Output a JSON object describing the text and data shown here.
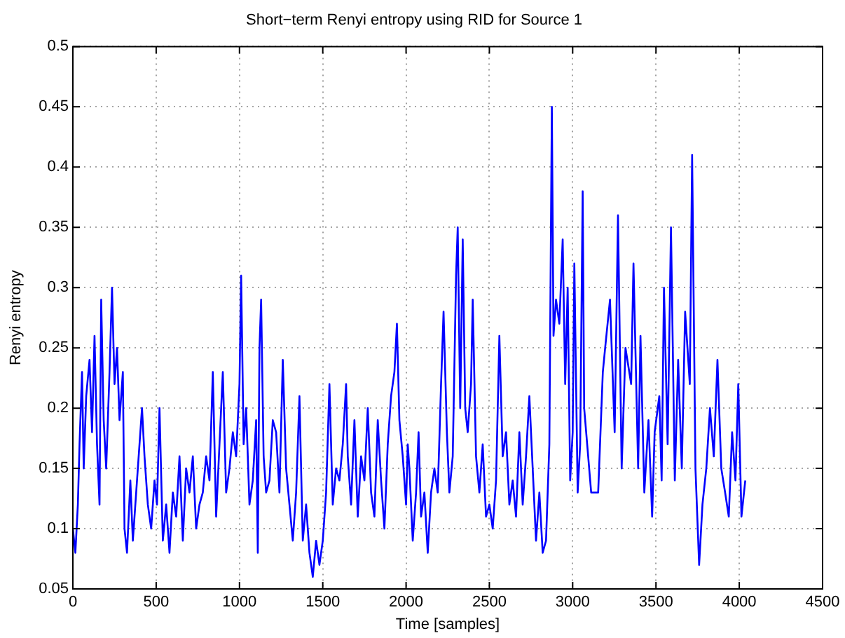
{
  "chart_data": {
    "type": "line",
    "title": "Short−term Renyi entropy using RID for Source 1",
    "xlabel": "Time [samples]",
    "ylabel": "Renyi entropy",
    "xlim": [
      0,
      4500
    ],
    "xticks": [
      0,
      500,
      1000,
      1500,
      2000,
      2500,
      3000,
      3500,
      4000,
      4500
    ],
    "ylim": [
      0.05,
      0.5
    ],
    "yticks": [
      0.05,
      0.1,
      0.15,
      0.2,
      0.25,
      0.3,
      0.35,
      0.4,
      0.45,
      0.5
    ],
    "grid": true,
    "marker": "none",
    "line_style": "solid",
    "series": [
      {
        "color": "#0000ff",
        "x": [
          0,
          15,
          30,
          40,
          55,
          65,
          80,
          100,
          115,
          130,
          145,
          160,
          170,
          185,
          200,
          220,
          235,
          250,
          265,
          280,
          300,
          310,
          325,
          345,
          360,
          380,
          400,
          415,
          430,
          450,
          470,
          490,
          505,
          520,
          540,
          560,
          580,
          600,
          620,
          640,
          660,
          680,
          700,
          720,
          740,
          760,
          780,
          800,
          820,
          840,
          860,
          880,
          900,
          920,
          940,
          960,
          980,
          1000,
          1010,
          1025,
          1040,
          1060,
          1080,
          1100,
          1110,
          1120,
          1130,
          1145,
          1160,
          1180,
          1200,
          1220,
          1240,
          1260,
          1280,
          1300,
          1320,
          1340,
          1360,
          1380,
          1400,
          1420,
          1440,
          1460,
          1480,
          1500,
          1520,
          1540,
          1560,
          1580,
          1600,
          1620,
          1640,
          1650,
          1670,
          1690,
          1710,
          1730,
          1750,
          1770,
          1790,
          1810,
          1830,
          1850,
          1870,
          1890,
          1910,
          1930,
          1945,
          1960,
          1980,
          2000,
          2010,
          2020,
          2040,
          2060,
          2075,
          2090,
          2110,
          2130,
          2150,
          2170,
          2190,
          2210,
          2225,
          2245,
          2260,
          2280,
          2300,
          2310,
          2325,
          2340,
          2355,
          2370,
          2390,
          2400,
          2420,
          2440,
          2460,
          2480,
          2500,
          2520,
          2540,
          2560,
          2580,
          2600,
          2620,
          2640,
          2660,
          2680,
          2700,
          2720,
          2740,
          2760,
          2780,
          2800,
          2820,
          2840,
          2860,
          2875,
          2885,
          2900,
          2920,
          2940,
          2955,
          2970,
          2985,
          3000,
          3010,
          3030,
          3045,
          3060,
          3069,
          3111,
          3153,
          3181,
          3195,
          3224,
          3252,
          3272,
          3294,
          3317,
          3351,
          3365,
          3393,
          3407,
          3430,
          3455,
          3477,
          3492,
          3520,
          3534,
          3548,
          3570,
          3590,
          3613,
          3633,
          3655,
          3675,
          3703,
          3717,
          3737,
          3759,
          3779,
          3802,
          3824,
          3847,
          3869,
          3892,
          3915,
          3937,
          3957,
          3977,
          3994,
          4013,
          4036
        ],
        "values": [
          0.1,
          0.08,
          0.12,
          0.17,
          0.23,
          0.15,
          0.21,
          0.24,
          0.18,
          0.26,
          0.17,
          0.12,
          0.29,
          0.19,
          0.15,
          0.23,
          0.3,
          0.22,
          0.25,
          0.19,
          0.23,
          0.1,
          0.08,
          0.14,
          0.09,
          0.13,
          0.17,
          0.2,
          0.16,
          0.12,
          0.1,
          0.14,
          0.12,
          0.2,
          0.09,
          0.12,
          0.08,
          0.13,
          0.11,
          0.16,
          0.09,
          0.15,
          0.13,
          0.16,
          0.1,
          0.12,
          0.13,
          0.16,
          0.14,
          0.23,
          0.11,
          0.17,
          0.23,
          0.13,
          0.15,
          0.18,
          0.16,
          0.22,
          0.31,
          0.17,
          0.2,
          0.12,
          0.14,
          0.19,
          0.08,
          0.25,
          0.29,
          0.16,
          0.13,
          0.14,
          0.19,
          0.18,
          0.13,
          0.24,
          0.15,
          0.12,
          0.09,
          0.13,
          0.21,
          0.09,
          0.12,
          0.08,
          0.06,
          0.09,
          0.07,
          0.09,
          0.13,
          0.22,
          0.12,
          0.15,
          0.14,
          0.17,
          0.22,
          0.16,
          0.12,
          0.19,
          0.11,
          0.16,
          0.14,
          0.2,
          0.13,
          0.11,
          0.19,
          0.14,
          0.1,
          0.17,
          0.21,
          0.23,
          0.27,
          0.19,
          0.16,
          0.12,
          0.17,
          0.15,
          0.09,
          0.13,
          0.18,
          0.11,
          0.13,
          0.08,
          0.13,
          0.15,
          0.13,
          0.22,
          0.28,
          0.18,
          0.13,
          0.16,
          0.31,
          0.35,
          0.2,
          0.34,
          0.2,
          0.18,
          0.22,
          0.29,
          0.16,
          0.13,
          0.17,
          0.11,
          0.12,
          0.1,
          0.14,
          0.26,
          0.16,
          0.18,
          0.12,
          0.14,
          0.11,
          0.18,
          0.12,
          0.16,
          0.21,
          0.15,
          0.09,
          0.13,
          0.08,
          0.09,
          0.17,
          0.45,
          0.26,
          0.29,
          0.27,
          0.34,
          0.22,
          0.3,
          0.14,
          0.18,
          0.32,
          0.13,
          0.17,
          0.38,
          0.2,
          0.13,
          0.13,
          0.23,
          0.25,
          0.29,
          0.18,
          0.36,
          0.15,
          0.25,
          0.22,
          0.32,
          0.15,
          0.26,
          0.13,
          0.19,
          0.11,
          0.18,
          0.21,
          0.14,
          0.3,
          0.17,
          0.35,
          0.14,
          0.24,
          0.15,
          0.28,
          0.22,
          0.41,
          0.15,
          0.07,
          0.12,
          0.15,
          0.2,
          0.16,
          0.24,
          0.15,
          0.13,
          0.11,
          0.18,
          0.14,
          0.22,
          0.11,
          0.14
        ]
      }
    ]
  }
}
